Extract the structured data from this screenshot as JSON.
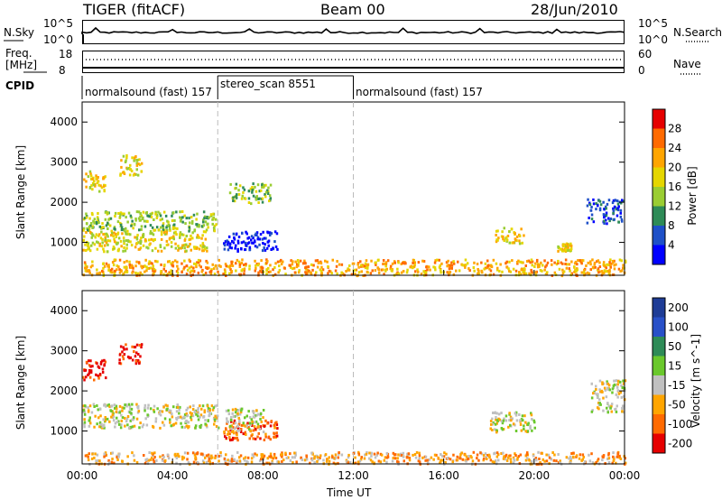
{
  "header": {
    "title_left": "TIGER (fitACF)",
    "title_center": "Beam 00",
    "title_right": "28/Jun/2010"
  },
  "top_panels": {
    "nsky_label": "N.Sky",
    "nsky_ticks": [
      "10^5",
      "10^0"
    ],
    "nsearch_label": "N.Search",
    "nsearch_ticks": [
      "10^5",
      "10^0"
    ],
    "freq_label_1": "Freq.",
    "freq_label_2": "[MHz]",
    "freq_ticks": [
      "18",
      "8"
    ],
    "nave_label": "Nave",
    "nave_ticks": [
      "60",
      "0"
    ],
    "cpid_label": "CPID",
    "cpid_segments": [
      {
        "label": "normalsound (fast) 157",
        "start": 0,
        "end": 6
      },
      {
        "label": "stereo_scan 8551",
        "start": 6,
        "end": 12
      },
      {
        "label": "normalsound (fast) 157",
        "start": 12,
        "end": 24
      }
    ]
  },
  "x_axis": {
    "label": "Time UT",
    "ticks": [
      "00:00",
      "04:00",
      "08:00",
      "12:00",
      "16:00",
      "20:00",
      "00:00"
    ]
  },
  "chart_data": [
    {
      "type": "heatmap",
      "panel": "power",
      "xlabel": "Time UT",
      "ylabel": "Slant Range [km]",
      "xlim": [
        0,
        24
      ],
      "ylim": [
        180,
        4500
      ],
      "yticks": [
        "4000",
        "3000",
        "2000",
        "1000"
      ],
      "colorbar_label": "Power [dB]",
      "colorbar_ticks": [
        "28",
        "24",
        "20",
        "16",
        "12",
        "8",
        "4"
      ],
      "colorbar_colors": [
        "#e60000",
        "#ff6a00",
        "#ffa500",
        "#e5d600",
        "#9acd32",
        "#2e8b57",
        "#1e50c8",
        "#0000ff"
      ],
      "regions": [
        {
          "x": [
            0.0,
            1.0
          ],
          "y": [
            2300,
            2800
          ],
          "level": 3
        },
        {
          "x": [
            1.6,
            2.6
          ],
          "y": [
            2700,
            3200
          ],
          "level": 3
        },
        {
          "x": [
            0.0,
            6.0
          ],
          "y": [
            1300,
            1800
          ],
          "level": 4
        },
        {
          "x": [
            0.0,
            5.5
          ],
          "y": [
            800,
            1300
          ],
          "level": 3
        },
        {
          "x": [
            6.2,
            8.6
          ],
          "y": [
            800,
            1300
          ],
          "level": 7
        },
        {
          "x": [
            6.5,
            8.3
          ],
          "y": [
            2000,
            2500
          ],
          "level": 4
        },
        {
          "x": [
            0.0,
            24.0
          ],
          "y": [
            200,
            600
          ],
          "level": 2
        },
        {
          "x": [
            18.2,
            19.5
          ],
          "y": [
            1000,
            1400
          ],
          "level": 3
        },
        {
          "x": [
            22.3,
            23.9
          ],
          "y": [
            1500,
            2100
          ],
          "level": 6
        },
        {
          "x": [
            21.0,
            21.6
          ],
          "y": [
            800,
            1000
          ],
          "level": 3
        }
      ]
    },
    {
      "type": "heatmap",
      "panel": "velocity",
      "xlabel": "Time UT",
      "ylabel": "Slant Range [km]",
      "xlim": [
        0,
        24
      ],
      "ylim": [
        180,
        4500
      ],
      "yticks": [
        "4000",
        "3000",
        "2000",
        "1000"
      ],
      "colorbar_label": "Velocity [m s^-1]",
      "colorbar_ticks": [
        "200",
        "100",
        "50",
        "15",
        "-15",
        "-50",
        "-100",
        "-200"
      ],
      "colorbar_colors": [
        "#1e3c96",
        "#2850c8",
        "#2e8b57",
        "#6ac82c",
        "#c0c0c0",
        "#ffa500",
        "#ff6a00",
        "#e60000"
      ],
      "regions": [
        {
          "x": [
            0.0,
            1.0
          ],
          "y": [
            2300,
            2800
          ],
          "level": 7
        },
        {
          "x": [
            1.6,
            2.6
          ],
          "y": [
            2700,
            3200
          ],
          "level": 7
        },
        {
          "x": [
            0.0,
            6.0
          ],
          "y": [
            1100,
            1700
          ],
          "level": 4
        },
        {
          "x": [
            6.2,
            8.6
          ],
          "y": [
            800,
            1300
          ],
          "level": 6
        },
        {
          "x": [
            6.3,
            8.0
          ],
          "y": [
            1000,
            1600
          ],
          "level": 4
        },
        {
          "x": [
            0.0,
            24.0
          ],
          "y": [
            200,
            500
          ],
          "level": 5
        },
        {
          "x": [
            18.0,
            20.0
          ],
          "y": [
            1000,
            1500
          ],
          "level": 4
        },
        {
          "x": [
            22.5,
            24.0
          ],
          "y": [
            1500,
            2300
          ],
          "level": 4
        }
      ]
    }
  ]
}
